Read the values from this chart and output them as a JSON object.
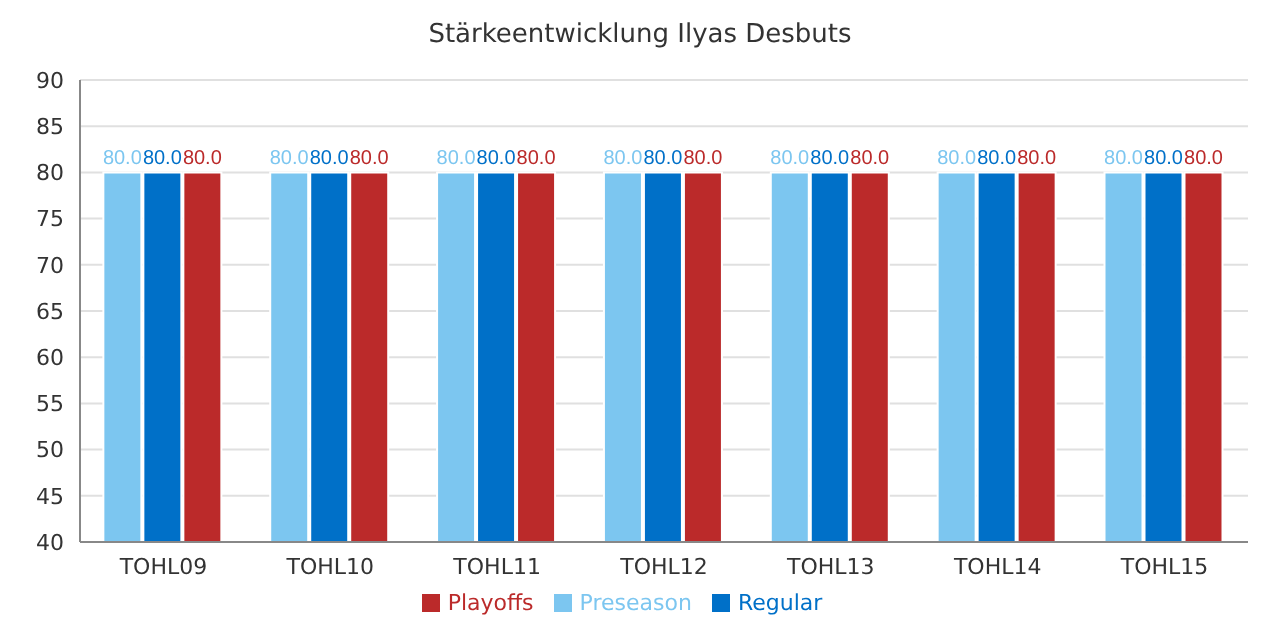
{
  "chart_data": {
    "type": "bar",
    "title": "Stärkeentwicklung Ilyas Desbuts",
    "categories": [
      "TOHL09",
      "TOHL10",
      "TOHL11",
      "TOHL12",
      "TOHL13",
      "TOHL14",
      "TOHL15"
    ],
    "series": [
      {
        "name": "Preseason",
        "color": "#7cc6f0",
        "values": [
          80,
          80,
          80,
          80,
          80,
          80,
          80
        ],
        "value_labels": [
          "80.0",
          "80.0",
          "80.0",
          "80.0",
          "80.0",
          "80.0",
          "80.0"
        ]
      },
      {
        "name": "Regular",
        "color": "#0070c8",
        "values": [
          80,
          80,
          80,
          80,
          80,
          80,
          80
        ],
        "value_labels": [
          "80.0",
          "80.0",
          "80.0",
          "80.0",
          "80.0",
          "80.0",
          "80.0"
        ]
      },
      {
        "name": "Playoffs",
        "color": "#bb2a2a",
        "values": [
          80,
          80,
          80,
          80,
          80,
          80,
          80
        ],
        "value_labels": [
          "80.0",
          "80.0",
          "80.0",
          "80.0",
          "80.0",
          "80.0",
          "80.0"
        ]
      }
    ],
    "ylim": [
      40,
      90
    ],
    "yticks": [
      40,
      45,
      50,
      55,
      60,
      65,
      70,
      75,
      80,
      85,
      90
    ],
    "grid": "y",
    "legend": "bottom"
  }
}
